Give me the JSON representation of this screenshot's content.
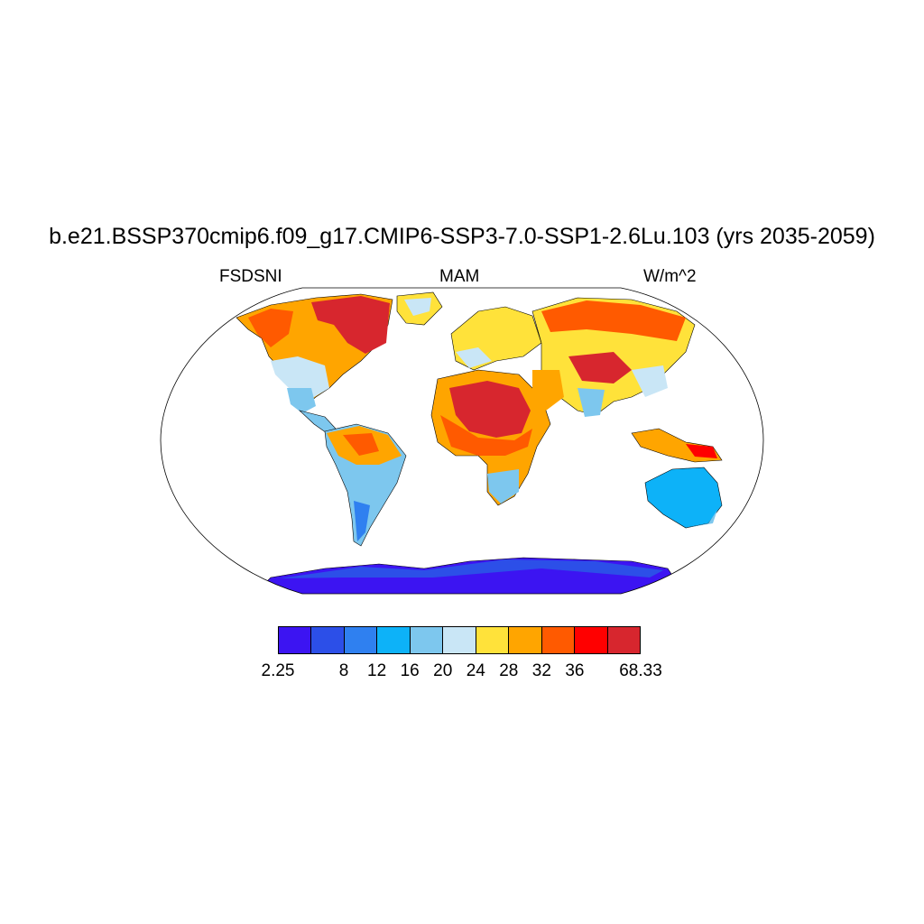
{
  "title": "b.e21.BSSP370cmip6.f09_g17.CMIP6-SSP3-7.0-SSP1-2.6Lu.103 (yrs 2035-2059)",
  "subtitle_left": "FSDSNI",
  "subtitle_center": "MAM",
  "subtitle_right": "W/m^2",
  "projection": "Robinson",
  "colorbar": {
    "colors": [
      "#3c14f2",
      "#2c4fe8",
      "#2f80f0",
      "#0db2f8",
      "#7dc7ee",
      "#c9e6f6",
      "#ffe23a",
      "#ffa500",
      "#ff5a00",
      "#ff0000",
      "#d7262e"
    ],
    "tick_labels": [
      "2.25",
      "8",
      "12",
      "16",
      "20",
      "24",
      "28",
      "32",
      "36",
      "68.33"
    ]
  }
}
